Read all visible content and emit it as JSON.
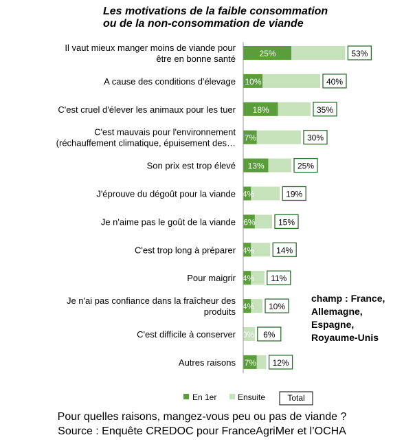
{
  "chart_data": {
    "type": "bar",
    "title": "Les motivations de la faible consommation\nou de la non-consommation de viande",
    "categories": [
      "Il vaut mieux manger moins de viande pour\nêtre en bonne santé",
      "A cause des conditions d'élevage",
      "C'est cruel d'élever les animaux pour les tuer",
      "C'est mauvais pour l'environnement\n(réchauffement climatique, épuisement des…",
      "Son prix est trop élevé",
      "J'éprouve du dégoût pour la viande",
      "Je n'aime pas le goût de la viande",
      "C'est trop long à préparer",
      "Pour maigrir",
      "Je n'ai pas confiance dans la fraîcheur des\nproduits",
      "C'est difficile à conserver",
      "Autres raisons"
    ],
    "series": [
      {
        "name": "En 1er",
        "color": "#5a9e3c",
        "labels": [
          "25%",
          "10%",
          "18%",
          "7%",
          "13%",
          "4%",
          "6%",
          "4%",
          "4%",
          "4%",
          "0%",
          "7%"
        ],
        "values": [
          25,
          10,
          18,
          7,
          13,
          4,
          6,
          4,
          4,
          4,
          0,
          7
        ]
      },
      {
        "name": "Ensuite",
        "color": "#c6e2bb",
        "values": [
          28,
          30,
          17,
          23,
          12,
          15,
          9,
          10,
          7,
          6,
          6,
          5
        ]
      },
      {
        "name": "Total",
        "color": "#ffffff",
        "labels": [
          "53%",
          "40%",
          "35%",
          "30%",
          "25%",
          "19%",
          "15%",
          "14%",
          "11%",
          "10%",
          "6%",
          "12%"
        ],
        "values": [
          53,
          40,
          35,
          30,
          25,
          19,
          15,
          14,
          11,
          10,
          6,
          12
        ]
      }
    ],
    "legend_position": "bottom",
    "grid": false,
    "xlim": [
      0,
      60
    ]
  },
  "annotations": {
    "scope": "champ : France,\nAllemagne,\nEspagne,\nRoyaume-Unis"
  },
  "caption": {
    "line1": "Pour quelles raisons, mangez-vous peu ou pas de viande ?",
    "line2": "Source : Enquête CREDOC pour FranceAgriMer et l’OCHA"
  },
  "colors": {
    "first": "#5a9e3c",
    "then": "#c6e2bb",
    "total_box_border": "#2e6b2e",
    "axis": "#999999"
  }
}
